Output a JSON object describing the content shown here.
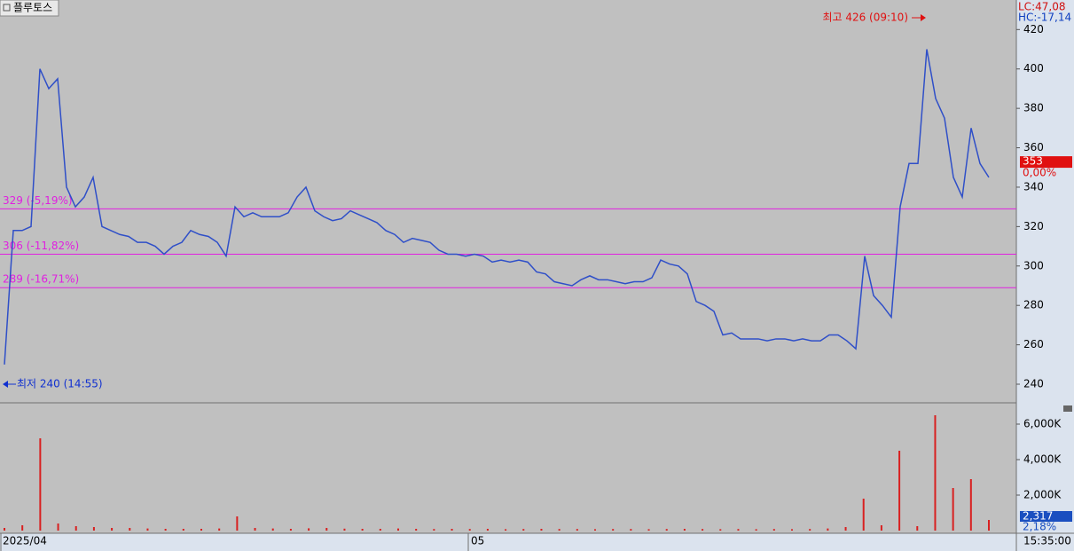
{
  "title": "플루토스",
  "indicators": [
    "LC:47,08",
    "HC:-17,14"
  ],
  "chart_data": [
    {
      "type": "line",
      "series": [
        {
          "color": "#2f4fc8",
          "values": [
            250,
            318,
            318,
            320,
            400,
            390,
            395,
            340,
            330,
            335,
            345,
            320,
            318,
            316,
            315,
            312,
            312,
            310,
            306,
            310,
            312,
            318,
            316,
            315,
            312,
            305,
            330,
            325,
            327,
            325,
            325,
            325,
            327,
            335,
            340,
            328,
            325,
            323,
            324,
            328,
            326,
            324,
            322,
            318,
            316,
            312,
            314,
            313,
            312,
            308,
            306,
            306,
            305,
            306,
            305,
            302,
            303,
            302,
            303,
            302,
            297,
            296,
            292,
            291,
            290,
            293,
            295,
            293,
            293,
            292,
            291,
            292,
            292,
            294,
            303,
            301,
            300,
            296,
            282,
            280,
            277,
            265,
            266,
            263,
            263,
            263,
            262,
            263,
            263,
            262,
            263,
            262,
            262,
            265,
            265,
            262,
            258,
            305,
            285,
            280,
            274,
            330,
            352,
            352,
            410,
            385,
            375,
            345,
            335,
            370,
            352,
            345
          ]
        }
      ],
      "ylim": [
        231,
        435
      ],
      "yticks": [
        240,
        260,
        280,
        300,
        320,
        340,
        360,
        380,
        400,
        420
      ],
      "reference_lines": [
        {
          "value": 329,
          "label": "329 (-5,19%)",
          "color": "#e020e0"
        },
        {
          "value": 306,
          "label": "306 (-11,82%)",
          "color": "#e020e0"
        },
        {
          "value": 289,
          "label": "289 (-16,71%)",
          "color": "#e020e0"
        }
      ],
      "high": {
        "value": 426,
        "label": "최고 426 (09:10)",
        "color": "#e01010"
      },
      "low": {
        "value": 240,
        "label": "최저 240 (14:55)",
        "color": "#1030d0"
      },
      "last": {
        "value": 353,
        "label": "353",
        "change": "0,00%"
      }
    },
    {
      "type": "bar",
      "color": "#d82020",
      "values": [
        150,
        300,
        5200,
        400,
        250,
        200,
        150,
        150,
        120,
        100,
        100,
        100,
        120,
        800,
        150,
        120,
        100,
        130,
        150,
        110,
        100,
        100,
        120,
        100,
        90,
        100,
        90,
        100,
        80,
        90,
        100,
        90,
        90,
        80,
        90,
        90,
        80,
        90,
        100,
        90,
        80,
        90,
        80,
        90,
        80,
        90,
        120,
        200,
        1800,
        300,
        4500,
        250,
        6500,
        2400,
        2900,
        600
      ],
      "ylim": [
        0,
        7100
      ],
      "yticks": [
        {
          "value": 2000,
          "label": "2,000K"
        },
        {
          "value": 4000,
          "label": "4,000K"
        },
        {
          "value": 6000,
          "label": "6,000K"
        }
      ],
      "current_volume": "2,317",
      "current_change": "2,18%"
    }
  ],
  "x_labels": [
    "2025/04",
    "05"
  ],
  "time": "15:35:00"
}
